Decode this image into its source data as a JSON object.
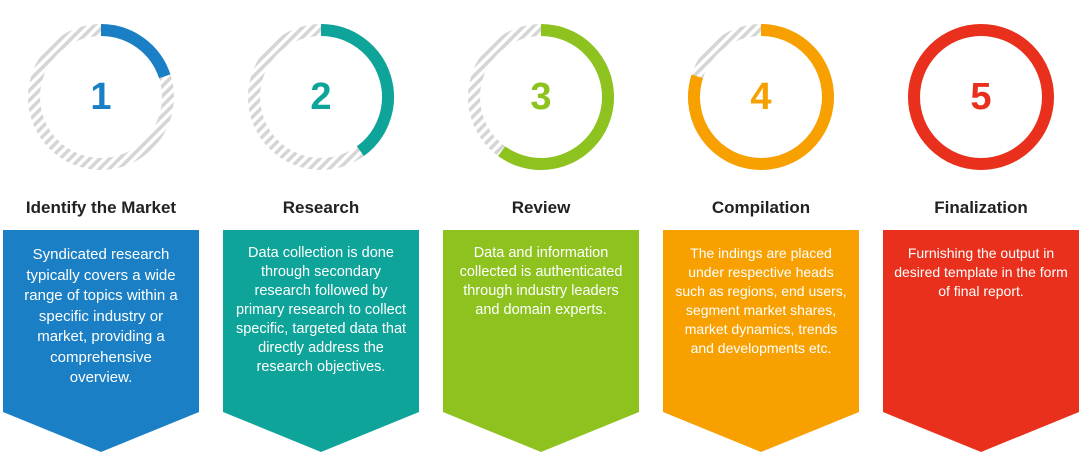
{
  "colors": {
    "track": "#d5d5d5",
    "title": "#222222"
  },
  "steps": [
    {
      "number": "1",
      "title": "Identify the Market",
      "text": "Syndicated research typically covers a wide range of topics within a specific industry or market, providing a comprehensive overview.",
      "color": "#1a7fc4",
      "progress": 0.2
    },
    {
      "number": "2",
      "title": "Research",
      "text": "Data collection is done through secondary research followed by primary research to collect specific, targeted data that directly address the research objectives.",
      "color": "#0ea49a",
      "progress": 0.4
    },
    {
      "number": "3",
      "title": "Review",
      "text": "Data and information collected is authenticated through industry leaders and domain experts.",
      "color": "#8dc21f",
      "progress": 0.6
    },
    {
      "number": "4",
      "title": "Compilation",
      "text": "The indings are placed under respective heads such as regions, end users, segment market shares, market dynamics, trends and developments etc.",
      "color": "#f7a000",
      "progress": 0.8
    },
    {
      "number": "5",
      "title": "Finalization",
      "text": "Furnishing the output in desired template in the form of final report.",
      "color": "#e8301c",
      "progress": 1.0
    }
  ]
}
